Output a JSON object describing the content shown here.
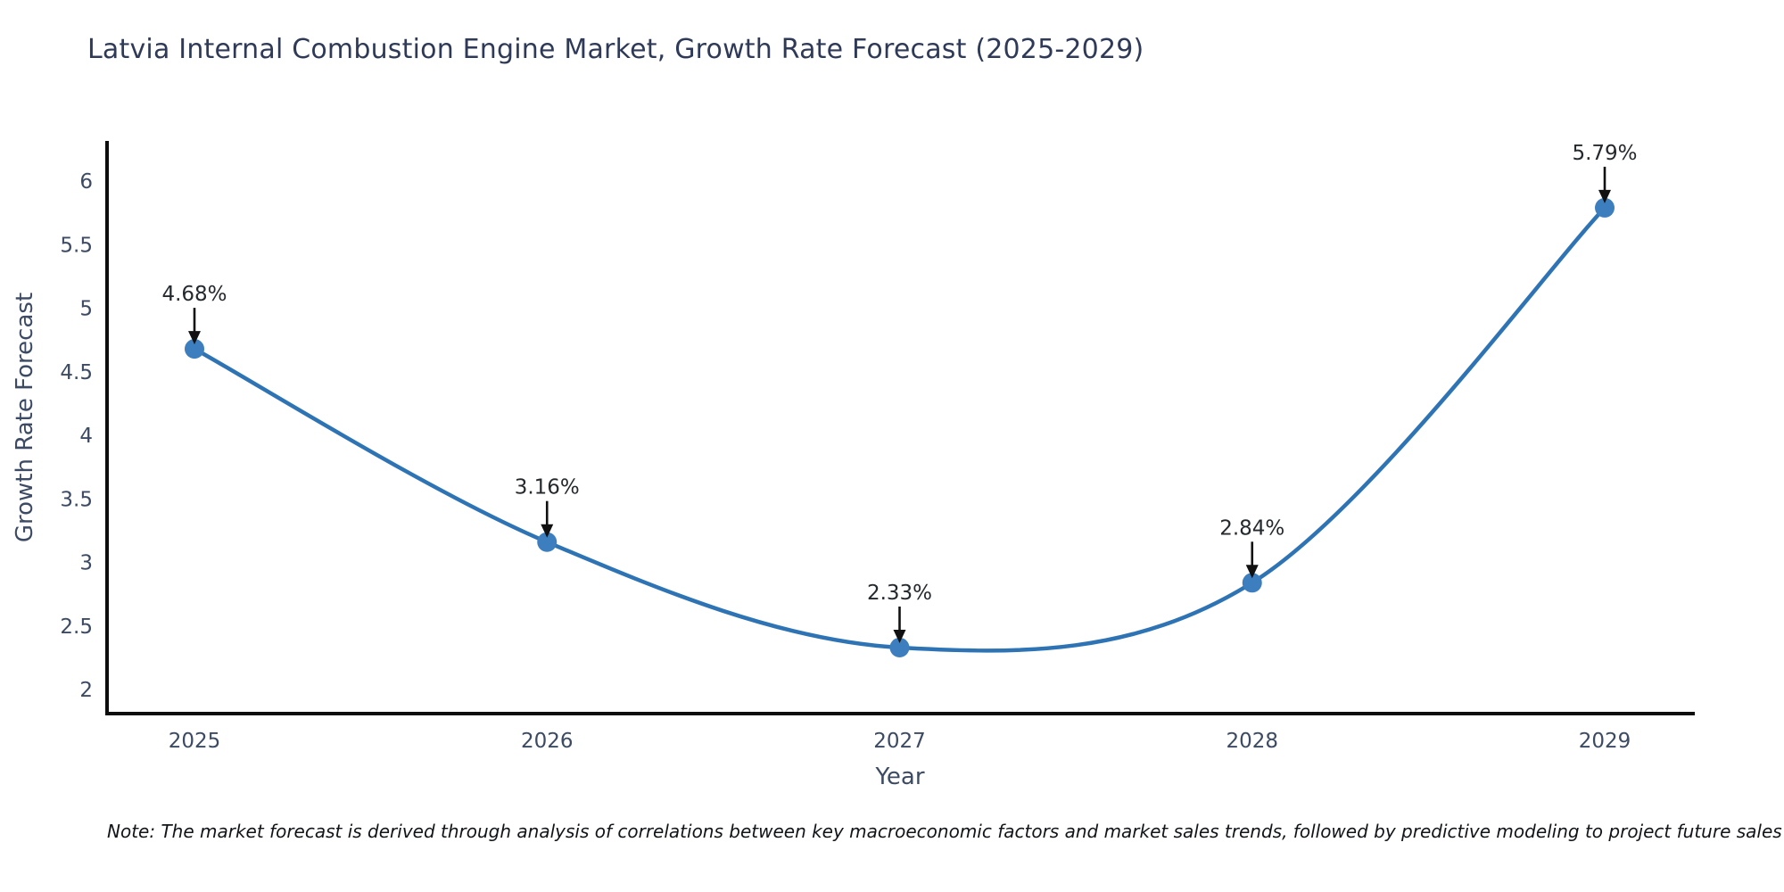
{
  "figure": {
    "title": "Latvia Internal Combustion Engine Market, Growth Rate Forecast (2025-2029)",
    "note": "Note: The market forecast is derived through analysis of correlations between key macroeconomic factors and market sales trends, followed by predictive modeling to project future sales"
  },
  "chart_data": {
    "type": "line",
    "title": "Latvia Internal Combustion Engine Market, Growth Rate Forecast (2025-2029)",
    "categories": [
      2025,
      2026,
      2027,
      2028,
      2029
    ],
    "values": [
      4.68,
      3.16,
      2.33,
      2.84,
      5.79
    ],
    "point_labels": [
      "4.68%",
      "3.16%",
      "2.33%",
      "2.84%",
      "5.79%"
    ],
    "xlabel": "Year",
    "ylabel": "Growth Rate Forecast",
    "yticks": [
      2,
      2.5,
      3,
      3.5,
      4,
      4.5,
      5,
      5.5,
      6
    ],
    "ylim": [
      1.8,
      6.3
    ],
    "xlim": [
      2024.75,
      2029.26
    ],
    "grid": false,
    "legend_position": "none",
    "smooth": true,
    "line_color": "#2e74b5",
    "marker_color": "#3d7ebf",
    "axis_color": "#0d0d0d",
    "annotation_arrow_color": "#111111"
  }
}
